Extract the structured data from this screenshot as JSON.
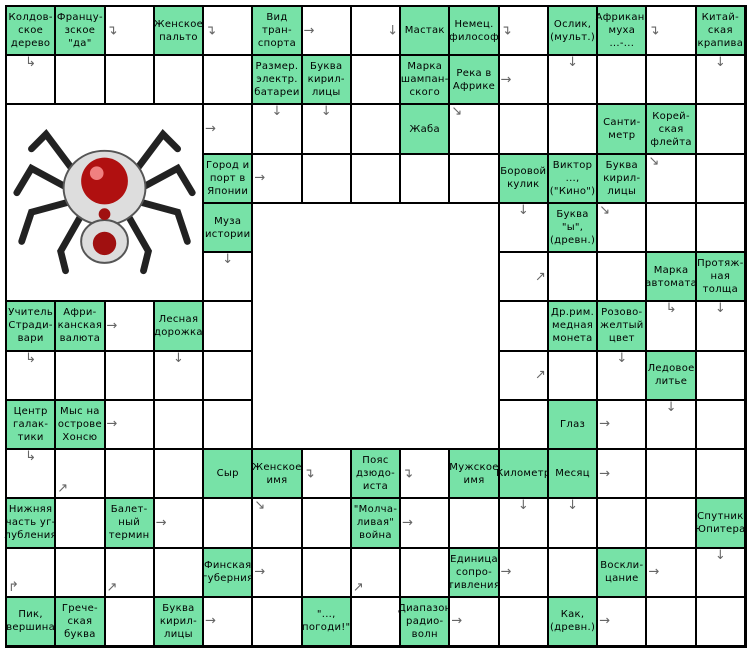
{
  "grid": {
    "rows": 13,
    "cols": 15,
    "clue_color": "#77e2a7"
  },
  "picture": {
    "name": "spider-image",
    "region": {
      "row": 2,
      "col": 0,
      "rows": 4,
      "cols": 4
    }
  },
  "blank_region": {
    "row": 4,
    "col": 5,
    "rows": 5,
    "cols": 5
  },
  "clues": [
    {
      "r": 0,
      "c": 0,
      "text": "Колдов-\nское\nдерево"
    },
    {
      "r": 0,
      "c": 1,
      "text": "Францу-\nзское\n\"да\""
    },
    {
      "r": 0,
      "c": 3,
      "text": "Женское\nпальто"
    },
    {
      "r": 0,
      "c": 5,
      "text": "Вид\nтран-\nспорта"
    },
    {
      "r": 0,
      "c": 8,
      "text": "Мастак"
    },
    {
      "r": 0,
      "c": 9,
      "text": "Немец.\nфилософ"
    },
    {
      "r": 0,
      "c": 11,
      "text": "Ослик,\n(мульт.)"
    },
    {
      "r": 0,
      "c": 12,
      "text": "Африкан.\nмуха\n...-..."
    },
    {
      "r": 0,
      "c": 14,
      "text": "Китай-\nская\nкрапива"
    },
    {
      "r": 1,
      "c": 5,
      "text": "Размер.\nэлектр.\nбатареи"
    },
    {
      "r": 1,
      "c": 6,
      "text": "Буква\nкирил-\nлицы"
    },
    {
      "r": 1,
      "c": 8,
      "text": "Марка\nшампан-\nского"
    },
    {
      "r": 1,
      "c": 9,
      "text": "Река в\nАфрике"
    },
    {
      "r": 2,
      "c": 8,
      "text": "Жаба"
    },
    {
      "r": 2,
      "c": 12,
      "text": "Санти-\nметр"
    },
    {
      "r": 2,
      "c": 13,
      "text": "Корей-\nская\nфлейта"
    },
    {
      "r": 3,
      "c": 4,
      "text": "Город и\nпорт в\nЯпонии"
    },
    {
      "r": 3,
      "c": 10,
      "text": "Боровой\nкулик"
    },
    {
      "r": 3,
      "c": 11,
      "text": "Виктор\n...,\n(\"Кино\")"
    },
    {
      "r": 3,
      "c": 12,
      "text": "Буква\nкирил-\nлицы"
    },
    {
      "r": 4,
      "c": 4,
      "text": "Муза\nистории"
    },
    {
      "r": 4,
      "c": 11,
      "text": "Буква\n\"ы\",\n(древн.)"
    },
    {
      "r": 5,
      "c": 13,
      "text": "Марка\nавтомата"
    },
    {
      "r": 5,
      "c": 14,
      "text": "Протяж-\nная\nтолща"
    },
    {
      "r": 6,
      "c": 0,
      "text": "Учитель\nСтради-\nвари"
    },
    {
      "r": 6,
      "c": 1,
      "text": "Афри-\nканская\nвалюта"
    },
    {
      "r": 6,
      "c": 3,
      "text": "Лесная\nдорожка"
    },
    {
      "r": 6,
      "c": 11,
      "text": "Др.рим.\nмедная\nмонета"
    },
    {
      "r": 6,
      "c": 12,
      "text": "Розово-\nжелтый\nцвет"
    },
    {
      "r": 7,
      "c": 13,
      "text": "Ледовое\nлитье"
    },
    {
      "r": 8,
      "c": 0,
      "text": "Центр\nгалак-\nтики"
    },
    {
      "r": 8,
      "c": 1,
      "text": "Мыс на\nострове\nХонсю"
    },
    {
      "r": 8,
      "c": 11,
      "text": "Глаз"
    },
    {
      "r": 9,
      "c": 4,
      "text": "Сыр"
    },
    {
      "r": 9,
      "c": 5,
      "text": "Женское\nимя"
    },
    {
      "r": 9,
      "c": 7,
      "text": "Пояс\nдзюдо-\nиста"
    },
    {
      "r": 9,
      "c": 9,
      "text": "Мужское\nимя"
    },
    {
      "r": 9,
      "c": 10,
      "text": "Километр"
    },
    {
      "r": 9,
      "c": 11,
      "text": "Месяц"
    },
    {
      "r": 10,
      "c": 0,
      "text": "Нижняя\nчасть уг-\nлубления"
    },
    {
      "r": 10,
      "c": 2,
      "text": "Балет-\nный\nтермин"
    },
    {
      "r": 10,
      "c": 7,
      "text": "\"Молча-\nливая\"\nвойна"
    },
    {
      "r": 10,
      "c": 14,
      "text": "Спутник\nЮпитера"
    },
    {
      "r": 11,
      "c": 4,
      "text": "Финская\nгуберния"
    },
    {
      "r": 11,
      "c": 9,
      "text": "Единица\nсопро-\nтивления"
    },
    {
      "r": 11,
      "c": 12,
      "text": "Воскли-\nцание"
    },
    {
      "r": 12,
      "c": 0,
      "text": "Пик,\nвершина"
    },
    {
      "r": 12,
      "c": 1,
      "text": "Грече-\nская\nбуква"
    },
    {
      "r": 12,
      "c": 3,
      "text": "Буква\nкирил-\nлицы"
    },
    {
      "r": 12,
      "c": 6,
      "text": "\"...,\nпогоди!\""
    },
    {
      "r": 12,
      "c": 8,
      "text": "Диапазон\nрадио-\nволн"
    },
    {
      "r": 12,
      "c": 11,
      "text": "Как,\n(древн.)"
    }
  ],
  "arrows": [
    {
      "r": 0,
      "c": 2,
      "g": "↴",
      "p": "l"
    },
    {
      "r": 0,
      "c": 4,
      "g": "↴",
      "p": "l"
    },
    {
      "r": 0,
      "c": 6,
      "g": "→",
      "p": "l"
    },
    {
      "r": 0,
      "c": 7,
      "g": "↓",
      "p": "r"
    },
    {
      "r": 0,
      "c": 10,
      "g": "↴",
      "p": "l"
    },
    {
      "r": 0,
      "c": 13,
      "g": "↴",
      "p": "l"
    },
    {
      "r": 1,
      "c": 0,
      "g": "↳",
      "p": "t"
    },
    {
      "r": 1,
      "c": 10,
      "g": "→",
      "p": "l"
    },
    {
      "r": 1,
      "c": 11,
      "g": "↓",
      "p": "t"
    },
    {
      "r": 1,
      "c": 14,
      "g": "↓",
      "p": "t"
    },
    {
      "r": 2,
      "c": 4,
      "g": "→",
      "p": "l"
    },
    {
      "r": 2,
      "c": 5,
      "g": "↓",
      "p": "t"
    },
    {
      "r": 2,
      "c": 6,
      "g": "↓",
      "p": "t"
    },
    {
      "r": 2,
      "c": 9,
      "g": "↘",
      "p": "tl"
    },
    {
      "r": 3,
      "c": 5,
      "g": "→",
      "p": "l"
    },
    {
      "r": 3,
      "c": 13,
      "g": "↘",
      "p": "tl"
    },
    {
      "r": 4,
      "c": 10,
      "g": "↓",
      "p": "t"
    },
    {
      "r": 4,
      "c": 12,
      "g": "↘",
      "p": "tl"
    },
    {
      "r": 5,
      "c": 4,
      "g": "↓",
      "p": "t"
    },
    {
      "r": 5,
      "c": 10,
      "g": "↗",
      "p": "r"
    },
    {
      "r": 6,
      "c": 13,
      "g": "↳",
      "p": "t"
    },
    {
      "r": 6,
      "c": 14,
      "g": "↓",
      "p": "t"
    },
    {
      "r": 6,
      "c": 2,
      "g": "→",
      "p": "l"
    },
    {
      "r": 7,
      "c": 0,
      "g": "↳",
      "p": "t"
    },
    {
      "r": 7,
      "c": 3,
      "g": "↓",
      "p": "t"
    },
    {
      "r": 7,
      "c": 10,
      "g": "↗",
      "p": "r"
    },
    {
      "r": 7,
      "c": 12,
      "g": "↓",
      "p": "t"
    },
    {
      "r": 8,
      "c": 2,
      "g": "→",
      "p": "l"
    },
    {
      "r": 8,
      "c": 12,
      "g": "→",
      "p": "l"
    },
    {
      "r": 8,
      "c": 13,
      "g": "↓",
      "p": "t"
    },
    {
      "r": 9,
      "c": 0,
      "g": "↳",
      "p": "t"
    },
    {
      "r": 9,
      "c": 1,
      "g": "↗",
      "p": "bl"
    },
    {
      "r": 9,
      "c": 6,
      "g": "↴",
      "p": "l"
    },
    {
      "r": 9,
      "c": 8,
      "g": "↴",
      "p": "l"
    },
    {
      "r": 9,
      "c": 12,
      "g": "→",
      "p": "l"
    },
    {
      "r": 10,
      "c": 5,
      "g": "↘",
      "p": "tl"
    },
    {
      "r": 10,
      "c": 3,
      "g": "→",
      "p": "l"
    },
    {
      "r": 10,
      "c": 8,
      "g": "→",
      "p": "l"
    },
    {
      "r": 10,
      "c": 10,
      "g": "↓",
      "p": "t"
    },
    {
      "r": 10,
      "c": 11,
      "g": "↓",
      "p": "t"
    },
    {
      "r": 11,
      "c": 14,
      "g": "↓",
      "p": "t"
    },
    {
      "r": 11,
      "c": 0,
      "g": "↱",
      "p": "bl"
    },
    {
      "r": 11,
      "c": 2,
      "g": "↗",
      "p": "bl"
    },
    {
      "r": 11,
      "c": 5,
      "g": "→",
      "p": "l"
    },
    {
      "r": 11,
      "c": 7,
      "g": "↗",
      "p": "bl"
    },
    {
      "r": 11,
      "c": 10,
      "g": "→",
      "p": "l"
    },
    {
      "r": 11,
      "c": 13,
      "g": "→",
      "p": "l"
    },
    {
      "r": 12,
      "c": 4,
      "g": "→",
      "p": "l"
    },
    {
      "r": 12,
      "c": 9,
      "g": "→",
      "p": "l"
    },
    {
      "r": 12,
      "c": 12,
      "g": "→",
      "p": "l"
    }
  ]
}
